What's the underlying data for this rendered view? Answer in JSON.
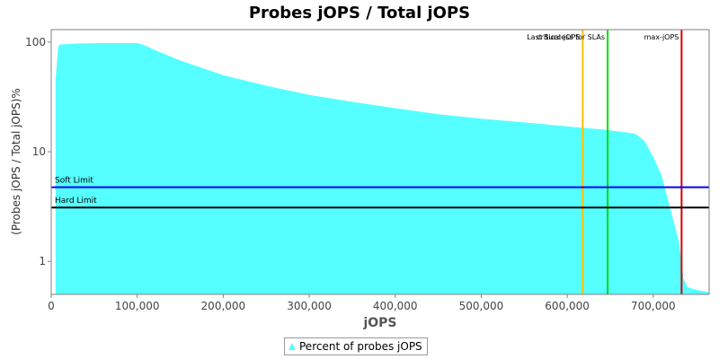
{
  "chart_data": {
    "type": "area",
    "title": "Probes jOPS / Total jOPS",
    "xlabel": "jOPS",
    "ylabel": "(Probes jOPS / Total jOPS)%",
    "y_scale": "log",
    "xlim": [
      0,
      765000
    ],
    "ylim": [
      0.5,
      130
    ],
    "x_ticks": [
      0,
      100000,
      200000,
      300000,
      400000,
      500000,
      600000,
      700000
    ],
    "x_tick_labels": [
      "0",
      "100,000",
      "200,000",
      "300,000",
      "400,000",
      "500,000",
      "600,000",
      "700,000"
    ],
    "y_ticks": [
      1,
      10,
      100
    ],
    "y_tick_labels": [
      "1",
      "10",
      "100"
    ],
    "grid": false,
    "legend_position": "bottom-center",
    "series": [
      {
        "name": "Percent of probes jOPS",
        "color": "#55ffff",
        "x": [
          5000,
          8000,
          10000,
          30000,
          60000,
          100000,
          105000,
          120000,
          150000,
          200000,
          250000,
          300000,
          350000,
          400000,
          450000,
          500000,
          550000,
          600000,
          640000,
          670000,
          680000,
          690000,
          700000,
          710000,
          720000,
          730000,
          735000,
          740000,
          750000,
          765000
        ],
        "y": [
          45,
          90,
          95,
          97,
          98,
          98,
          96,
          85,
          68,
          50,
          40,
          33,
          28.5,
          25,
          22,
          20,
          18.5,
          17,
          16,
          15,
          14.5,
          12.5,
          9,
          6,
          3,
          1.5,
          0.7,
          0.58,
          0.55,
          0.52
        ]
      }
    ],
    "vertical_markers": [
      {
        "label": "critical-jOPS",
        "x": 618000,
        "color": "#ffc000"
      },
      {
        "label": "Last Success for SLAs",
        "x": 647000,
        "color": "#00e000"
      },
      {
        "label": "max-jOPS",
        "x": 733000,
        "color": "#dd0000"
      }
    ],
    "horizontal_limits": [
      {
        "label": "Soft Limit",
        "y": 4.75,
        "color": "#0000ff"
      },
      {
        "label": "Hard Limit",
        "y": 3.1,
        "color": "#000000"
      }
    ]
  }
}
